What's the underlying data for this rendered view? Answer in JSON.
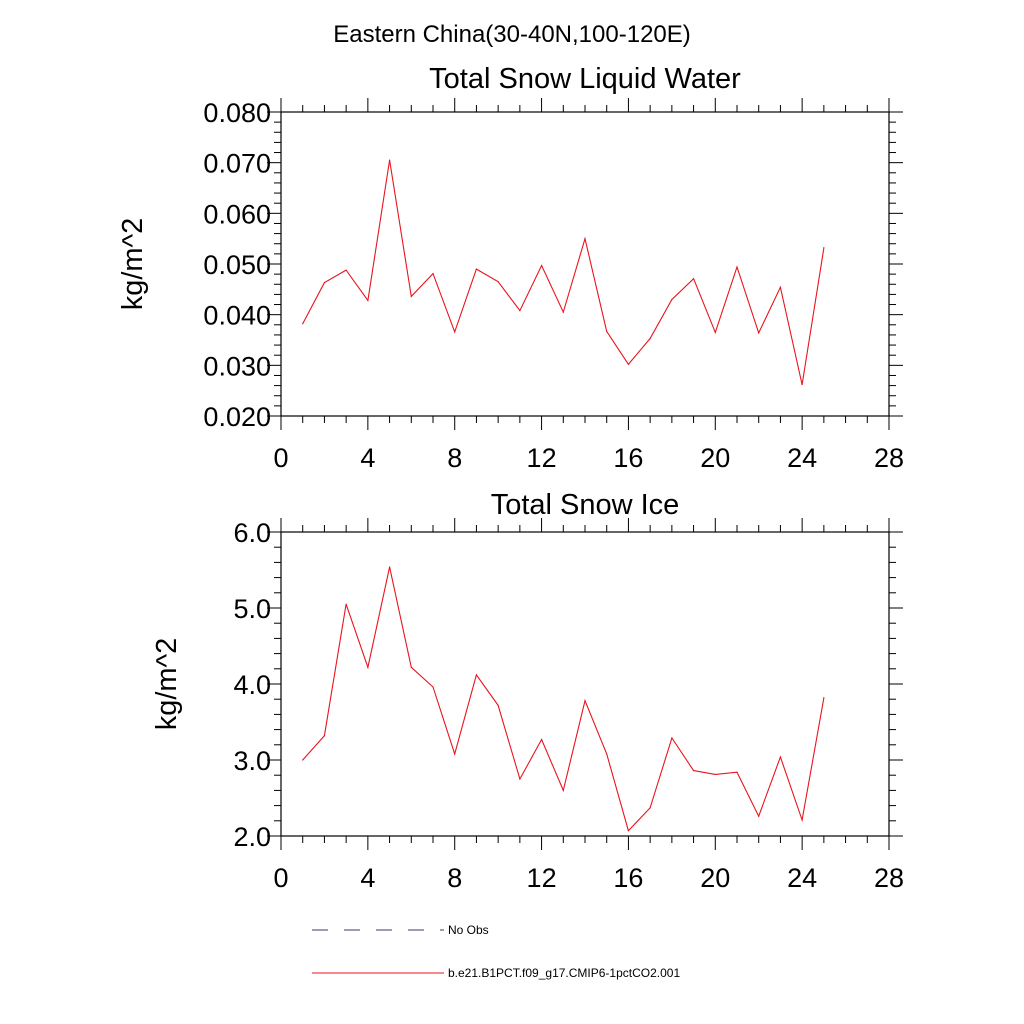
{
  "figure_title": "Eastern China(30-40N,100-120E)",
  "legend": {
    "entries": [
      {
        "label": "No Obs",
        "style": "dashed",
        "color": "#3a3a6a"
      },
      {
        "label": "b.e21.B1PCT.f09_g17.CMIP6-1pctCO2.001",
        "style": "solid",
        "color": "#e8141e"
      }
    ]
  },
  "chart_data": [
    {
      "type": "line",
      "title": "Total Snow Liquid Water",
      "xlabel": "",
      "ylabel": "kg/m^2",
      "xlim": [
        0,
        28
      ],
      "ylim": [
        0.02,
        0.08
      ],
      "xticks": [
        "0",
        "4",
        "8",
        "12",
        "16",
        "20",
        "24",
        "28"
      ],
      "yticks": [
        "0.020",
        "0.030",
        "0.040",
        "0.050",
        "0.060",
        "0.070",
        "0.080"
      ],
      "grid": false,
      "series": [
        {
          "color": "#e8141e",
          "x": [
            1,
            2,
            3,
            4,
            5,
            6,
            7,
            8,
            9,
            10,
            11,
            12,
            13,
            14,
            15,
            16,
            17,
            18,
            19,
            20,
            21,
            22,
            23,
            24,
            25
          ],
          "values": [
            0.0382,
            0.0463,
            0.0488,
            0.0428,
            0.0705,
            0.0436,
            0.0481,
            0.0366,
            0.049,
            0.0465,
            0.0408,
            0.0497,
            0.0405,
            0.055,
            0.0367,
            0.0302,
            0.0353,
            0.043,
            0.0471,
            0.0365,
            0.0494,
            0.0364,
            0.0454,
            0.0262,
            0.0532
          ]
        }
      ]
    },
    {
      "type": "line",
      "title": "Total Snow Ice",
      "xlabel": "",
      "ylabel": "kg/m^2",
      "xlim": [
        0,
        28
      ],
      "ylim": [
        2.0,
        6.0
      ],
      "xticks": [
        "0",
        "4",
        "8",
        "12",
        "16",
        "20",
        "24",
        "28"
      ],
      "yticks": [
        "2.0",
        "3.0",
        "4.0",
        "5.0",
        "6.0"
      ],
      "grid": false,
      "series": [
        {
          "color": "#e8141e",
          "x": [
            1,
            2,
            3,
            4,
            5,
            6,
            7,
            8,
            9,
            10,
            11,
            12,
            13,
            14,
            15,
            16,
            17,
            18,
            19,
            20,
            21,
            22,
            23,
            24,
            25
          ],
          "values": [
            3.0,
            3.32,
            5.05,
            4.22,
            5.54,
            4.22,
            3.96,
            3.08,
            4.12,
            3.72,
            2.75,
            3.27,
            2.6,
            3.78,
            3.08,
            2.07,
            2.37,
            3.29,
            2.86,
            2.81,
            2.84,
            2.26,
            3.04,
            2.21,
            3.82
          ]
        }
      ]
    }
  ]
}
